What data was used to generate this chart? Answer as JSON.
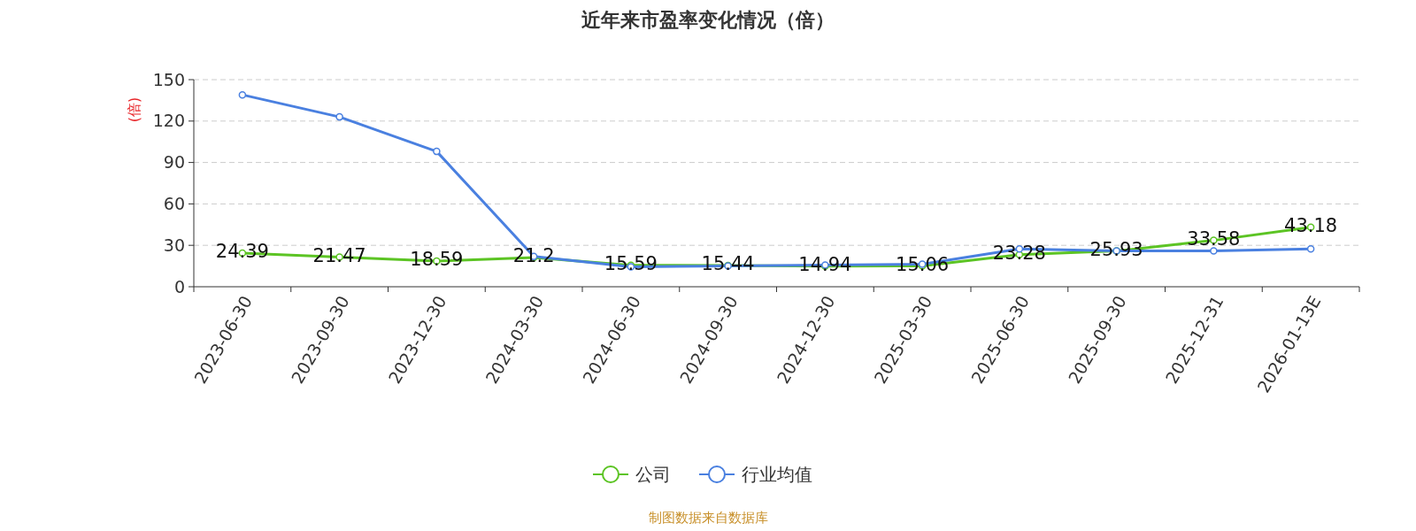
{
  "chart_data": {
    "type": "line",
    "title": "近年来市盈率变化情况（倍）",
    "ylabel": "(倍)",
    "categories": [
      "2023-06-30",
      "2023-09-30",
      "2023-12-30",
      "2024-03-30",
      "2024-06-30",
      "2024-09-30",
      "2024-12-30",
      "2025-03-30",
      "2025-06-30",
      "2025-09-30",
      "2025-12-31",
      "2026-01-13E"
    ],
    "series": [
      {
        "name": "公司",
        "color": "#5cc424",
        "values": [
          24.39,
          21.47,
          18.59,
          21.2,
          15.59,
          15.44,
          14.94,
          15.06,
          23.28,
          25.93,
          33.58,
          43.18
        ],
        "value_labels": [
          "24.39",
          "21.47",
          "18.59",
          "21.2",
          "15.59",
          "15.44",
          "14.94",
          "15.06",
          "23.28",
          "25.93",
          "33.58",
          "43.18"
        ]
      },
      {
        "name": "行业均值",
        "color": "#4a80e0",
        "values": [
          139,
          123,
          98,
          22,
          14.4,
          15,
          15.7,
          16.3,
          27.4,
          26,
          26,
          27.4
        ]
      }
    ],
    "ylim": [
      0,
      150
    ],
    "yticks": [
      0,
      30,
      60,
      90,
      120,
      150
    ],
    "grid": "y",
    "legend": "bottom",
    "marker": "circle",
    "line_style": "solid",
    "annotations": [
      "制图数据来自数据库"
    ]
  }
}
